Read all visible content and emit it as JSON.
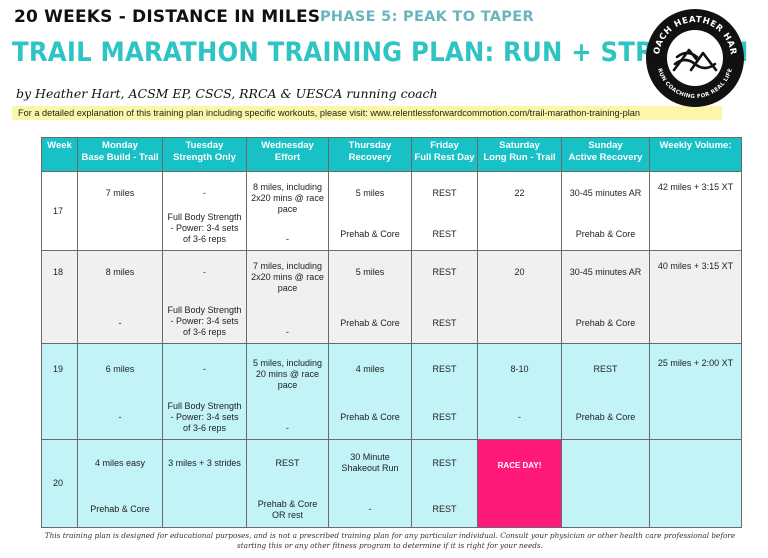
{
  "header": {
    "subtitle": "20 WEEKS - DISTANCE IN MILES",
    "phase": "PHASE 5: PEAK TO TAPER",
    "title": "TRAIL MARATHON TRAINING PLAN: RUN + STRENGTH",
    "byline": "by Heather Hart, ACSM EP, CSCS, RRCA & UESCA running coach",
    "detail_note": "For a detailed explanation of this training plan including specific workouts, please visit: www.relentlessforwardcommotion.com/trail-marathon-training-plan"
  },
  "logo": {
    "icon": "mountain-wave-badge-icon",
    "ring_top": "COACH HEATHER HART",
    "ring_bottom": "RUN COACHING FOR REAL LIFE",
    "colors": {
      "ring": "#111111",
      "accent": "#17c1c6"
    }
  },
  "table": {
    "columns": [
      {
        "line1": "Week",
        "line2": ""
      },
      {
        "line1": "Monday",
        "line2": "Base Build - Trail"
      },
      {
        "line1": "Tuesday",
        "line2": "Strength Only"
      },
      {
        "line1": "Wednesday",
        "line2": "Effort"
      },
      {
        "line1": "Thursday",
        "line2": "Recovery"
      },
      {
        "line1": "Friday",
        "line2": "Full Rest Day"
      },
      {
        "line1": "Saturday",
        "line2": "Long Run - Trail"
      },
      {
        "line1": "Sunday",
        "line2": "Active Recovery"
      },
      {
        "line1": "Weekly Volume:",
        "line2": ""
      }
    ],
    "rows": [
      {
        "week": "17",
        "cells": [
          {
            "top": "7 miles",
            "bottom": ""
          },
          {
            "top": "-",
            "bottom": "Full Body Strength - Power: 3-4 sets of 3-6 reps"
          },
          {
            "top": "8 miles, including 2x20 mins @ race pace",
            "bottom": "-"
          },
          {
            "top": "5 miles",
            "bottom": "Prehab & Core"
          },
          {
            "top": "REST",
            "bottom": "REST"
          },
          {
            "top": "22",
            "bottom": ""
          },
          {
            "top": "30-45 minutes AR",
            "bottom": "Prehab & Core"
          },
          {
            "top": "42 miles + 3:15 XT",
            "bottom": ""
          }
        ]
      },
      {
        "week": "18",
        "cells": [
          {
            "top": "8 miles",
            "bottom": "-"
          },
          {
            "top": "-",
            "bottom": "Full Body Strength - Power: 3-4 sets of 3-6 reps"
          },
          {
            "top": "7 miles, including 2x20 mins @ race pace",
            "bottom": "-"
          },
          {
            "top": "5 miles",
            "bottom": "Prehab & Core"
          },
          {
            "top": "REST",
            "bottom": "REST"
          },
          {
            "top": "20",
            "bottom": ""
          },
          {
            "top": "30-45 minutes AR",
            "bottom": "Prehab & Core"
          },
          {
            "top": "40 miles + 3:15 XT",
            "bottom": ""
          }
        ]
      },
      {
        "week": "19",
        "cells": [
          {
            "top": "6 miles",
            "bottom": "-"
          },
          {
            "top": "-",
            "bottom": "Full Body Strength - Power: 3-4 sets of 3-6 reps"
          },
          {
            "top": "5 miles, including 20 mins @ race pace",
            "bottom": "-"
          },
          {
            "top": "4 miles",
            "bottom": "Prehab & Core"
          },
          {
            "top": "REST",
            "bottom": "REST"
          },
          {
            "top": "8-10",
            "bottom": "-"
          },
          {
            "top": "REST",
            "bottom": "Prehab & Core"
          },
          {
            "top": "25 miles + 2:00 XT",
            "bottom": ""
          }
        ]
      },
      {
        "week": "20",
        "cells": [
          {
            "top": "4 miles easy",
            "bottom": "Prehab & Core"
          },
          {
            "top": "3 miles + 3 strides",
            "bottom": ""
          },
          {
            "top": "REST",
            "bottom": "Prehab & Core OR rest"
          },
          {
            "top": "30 Minute Shakeout Run",
            "bottom": "-"
          },
          {
            "top": "REST",
            "bottom": "REST"
          },
          {
            "top": "RACE DAY!",
            "bottom": ""
          },
          {
            "top": "",
            "bottom": ""
          },
          {
            "top": "",
            "bottom": ""
          }
        ]
      }
    ],
    "colors": {
      "header": "#17c1c6",
      "row_gray": "#f0f0f0",
      "row_cyan": "#c2f3f7",
      "race_day": "#ff1a7a"
    }
  },
  "footer": {
    "disclaimer": "This training plan is designed for educational purposes, and is not a prescribed training plan for any particular individual. Consult your physician or other health care professional before starting this or any other fitness program to determine if it is right for your needs."
  }
}
